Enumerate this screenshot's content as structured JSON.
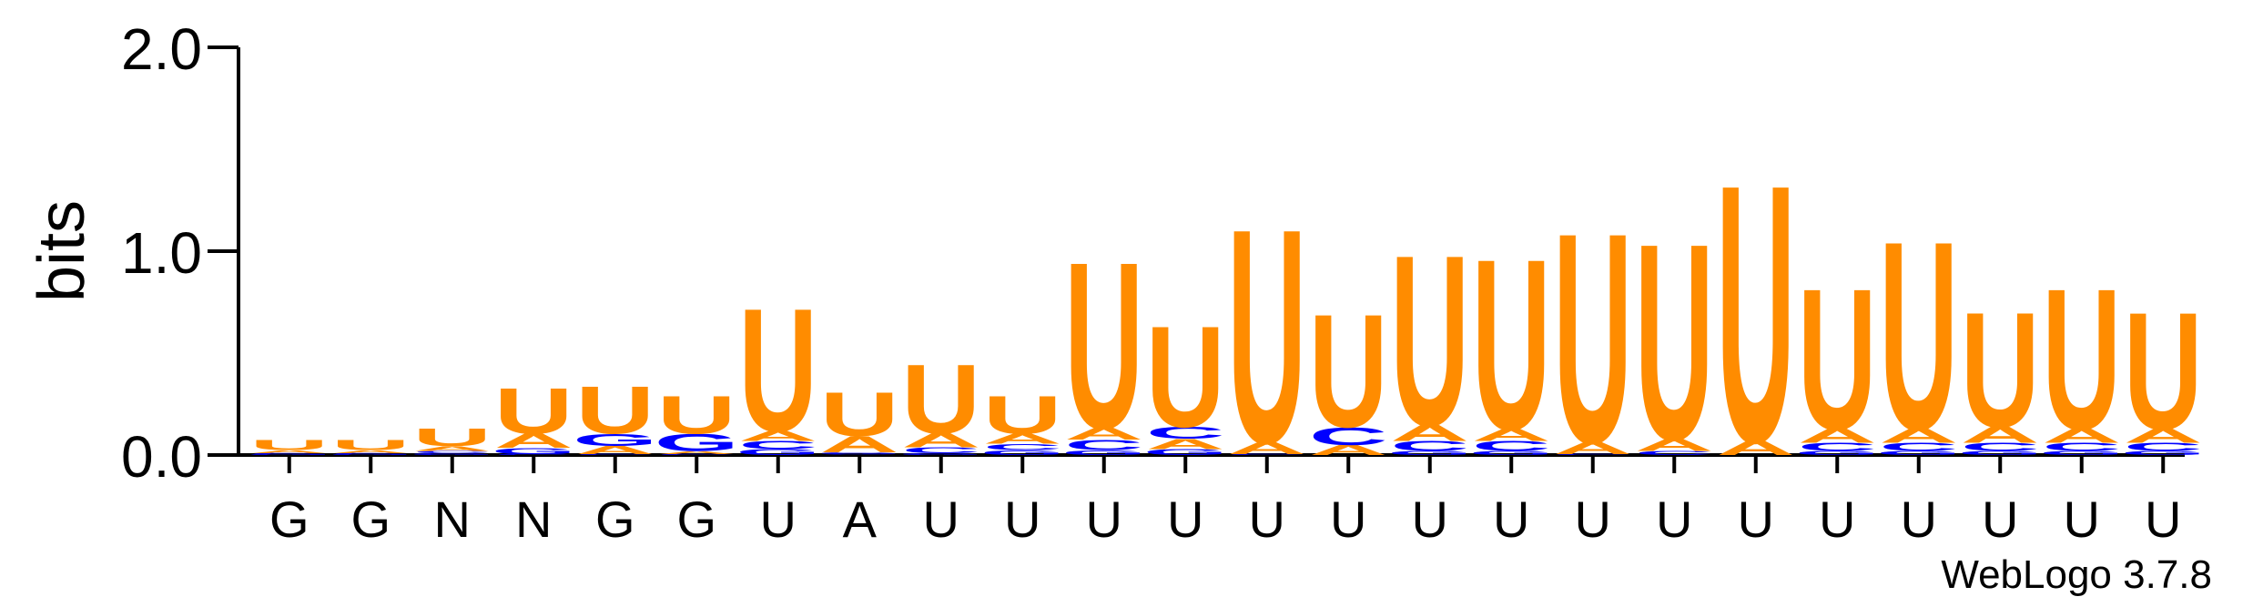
{
  "chart_data": {
    "type": "sequence-logo",
    "ylabel": "bits",
    "ylim": [
      0,
      2.0
    ],
    "yticks": [
      "0.0",
      "1.0",
      "2.0"
    ],
    "positions": [
      "G",
      "G",
      "N",
      "N",
      "G",
      "G",
      "U",
      "A",
      "U",
      "U",
      "U",
      "U",
      "U",
      "U",
      "U",
      "U",
      "U",
      "U",
      "U",
      "U",
      "U",
      "U",
      "U",
      "U"
    ],
    "colors": {
      "U": "#FF8C00",
      "A": "#FF8C00",
      "G": "#0000FF",
      "C": "#0000FF"
    },
    "stacks": [
      [
        {
          "l": "G",
          "v": 0.005
        },
        {
          "l": "C",
          "v": 0.005
        },
        {
          "l": "A",
          "v": 0.015
        },
        {
          "l": "U",
          "v": 0.05
        }
      ],
      [
        {
          "l": "G",
          "v": 0.005
        },
        {
          "l": "C",
          "v": 0.005
        },
        {
          "l": "A",
          "v": 0.015
        },
        {
          "l": "U",
          "v": 0.05
        }
      ],
      [
        {
          "l": "G",
          "v": 0.008
        },
        {
          "l": "C",
          "v": 0.012
        },
        {
          "l": "A",
          "v": 0.025
        },
        {
          "l": "U",
          "v": 0.09
        }
      ],
      [
        {
          "l": "C",
          "v": 0.005
        },
        {
          "l": "G",
          "v": 0.03
        },
        {
          "l": "A",
          "v": 0.07
        },
        {
          "l": "U",
          "v": 0.23
        }
      ],
      [
        {
          "l": "C",
          "v": 0.005
        },
        {
          "l": "A",
          "v": 0.04
        },
        {
          "l": "G",
          "v": 0.06
        },
        {
          "l": "U",
          "v": 0.24
        }
      ],
      [
        {
          "l": "C",
          "v": 0.005
        },
        {
          "l": "A",
          "v": 0.015
        },
        {
          "l": "G",
          "v": 0.085
        },
        {
          "l": "U",
          "v": 0.19
        }
      ],
      [
        {
          "l": "G",
          "v": 0.03
        },
        {
          "l": "C",
          "v": 0.04
        },
        {
          "l": "A",
          "v": 0.05
        },
        {
          "l": "U",
          "v": 0.62
        }
      ],
      [
        {
          "l": "C",
          "v": 0.004
        },
        {
          "l": "G",
          "v": 0.01
        },
        {
          "l": "A",
          "v": 0.08
        },
        {
          "l": "U",
          "v": 0.22
        }
      ],
      [
        {
          "l": "G",
          "v": 0.008
        },
        {
          "l": "C",
          "v": 0.03
        },
        {
          "l": "A",
          "v": 0.07
        },
        {
          "l": "U",
          "v": 0.35
        }
      ],
      [
        {
          "l": "G",
          "v": 0.025
        },
        {
          "l": "C",
          "v": 0.03
        },
        {
          "l": "A",
          "v": 0.05
        },
        {
          "l": "U",
          "v": 0.19
        }
      ],
      [
        {
          "l": "G",
          "v": 0.025
        },
        {
          "l": "C",
          "v": 0.05
        },
        {
          "l": "A",
          "v": 0.06
        },
        {
          "l": "U",
          "v": 0.84
        }
      ],
      [
        {
          "l": "G",
          "v": 0.03
        },
        {
          "l": "A",
          "v": 0.05
        },
        {
          "l": "C",
          "v": 0.06
        },
        {
          "l": "U",
          "v": 0.51
        }
      ],
      [
        {
          "l": "C",
          "v": 0.005
        },
        {
          "l": "A",
          "v": 0.06
        },
        {
          "l": "U",
          "v": 1.08
        }
      ],
      [
        {
          "l": "A",
          "v": 0.05
        },
        {
          "l": "C",
          "v": 0.09
        },
        {
          "l": "U",
          "v": 0.57
        }
      ],
      [
        {
          "l": "G",
          "v": 0.02
        },
        {
          "l": "C",
          "v": 0.05
        },
        {
          "l": "A",
          "v": 0.08
        },
        {
          "l": "U",
          "v": 0.86
        }
      ],
      [
        {
          "l": "G",
          "v": 0.02
        },
        {
          "l": "C",
          "v": 0.05
        },
        {
          "l": "A",
          "v": 0.06
        },
        {
          "l": "U",
          "v": 0.86
        }
      ],
      [
        {
          "l": "C",
          "v": 0.005
        },
        {
          "l": "A",
          "v": 0.06
        },
        {
          "l": "U",
          "v": 1.06
        }
      ],
      [
        {
          "l": "C",
          "v": 0.02
        },
        {
          "l": "A",
          "v": 0.06
        },
        {
          "l": "U",
          "v": 0.99
        }
      ],
      [
        {
          "l": "A",
          "v": 0.07
        },
        {
          "l": "U",
          "v": 1.3
        }
      ],
      [
        {
          "l": "G",
          "v": 0.02
        },
        {
          "l": "C",
          "v": 0.04
        },
        {
          "l": "A",
          "v": 0.07
        },
        {
          "l": "U",
          "v": 0.71
        }
      ],
      [
        {
          "l": "G",
          "v": 0.02
        },
        {
          "l": "C",
          "v": 0.04
        },
        {
          "l": "A",
          "v": 0.07
        },
        {
          "l": "U",
          "v": 0.95
        }
      ],
      [
        {
          "l": "G",
          "v": 0.02
        },
        {
          "l": "C",
          "v": 0.04
        },
        {
          "l": "A",
          "v": 0.08
        },
        {
          "l": "U",
          "v": 0.58
        }
      ],
      [
        {
          "l": "G",
          "v": 0.02
        },
        {
          "l": "C",
          "v": 0.04
        },
        {
          "l": "A",
          "v": 0.07
        },
        {
          "l": "U",
          "v": 0.71
        }
      ],
      [
        {
          "l": "G",
          "v": 0.02
        },
        {
          "l": "C",
          "v": 0.04
        },
        {
          "l": "A",
          "v": 0.07
        },
        {
          "l": "U",
          "v": 0.59
        }
      ]
    ]
  },
  "footer": {
    "credit": "WebLogo 3.7.8"
  }
}
